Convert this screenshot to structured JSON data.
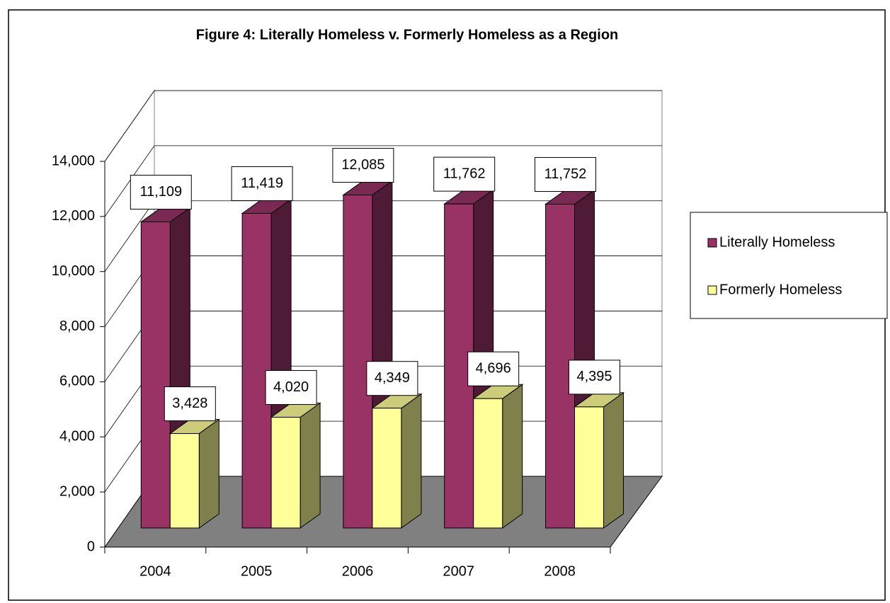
{
  "chart_data": {
    "type": "bar3d",
    "title": "Figure 4: Literally Homeless v. Formerly Homeless as a Region",
    "categories": [
      "2004",
      "2005",
      "2006",
      "2007",
      "2008"
    ],
    "series": [
      {
        "name": "Literally Homeless",
        "color": "#993366",
        "side_color": "#4f1a35",
        "top_color": "#7a2952",
        "values": [
          11109,
          11419,
          12085,
          11762,
          11752
        ],
        "value_labels": [
          "11,109",
          "11,419",
          "12,085",
          "11,762",
          "11,752"
        ]
      },
      {
        "name": "Formerly Homeless",
        "color": "#ffff99",
        "side_color": "#80804d",
        "top_color": "#cccc7a",
        "values": [
          3428,
          4020,
          4349,
          4696,
          4395
        ],
        "value_labels": [
          "3,428",
          "4,020",
          "4,349",
          "4,696",
          "4,395"
        ]
      }
    ],
    "ylim": [
      0,
      14000
    ],
    "yticks": [
      0,
      {
        "value": 2000,
        "label": "2,000"
      },
      {
        "value": 4000,
        "label": "4,000"
      },
      {
        "value": 6000,
        "label": "6,000"
      },
      {
        "value": 8000,
        "label": "8,000"
      },
      {
        "value": 10000,
        "label": "10,000"
      },
      {
        "value": 12000,
        "label": "12,000"
      },
      {
        "value": 14000,
        "label": "14,000"
      }
    ],
    "grid": true,
    "legend": "right"
  }
}
